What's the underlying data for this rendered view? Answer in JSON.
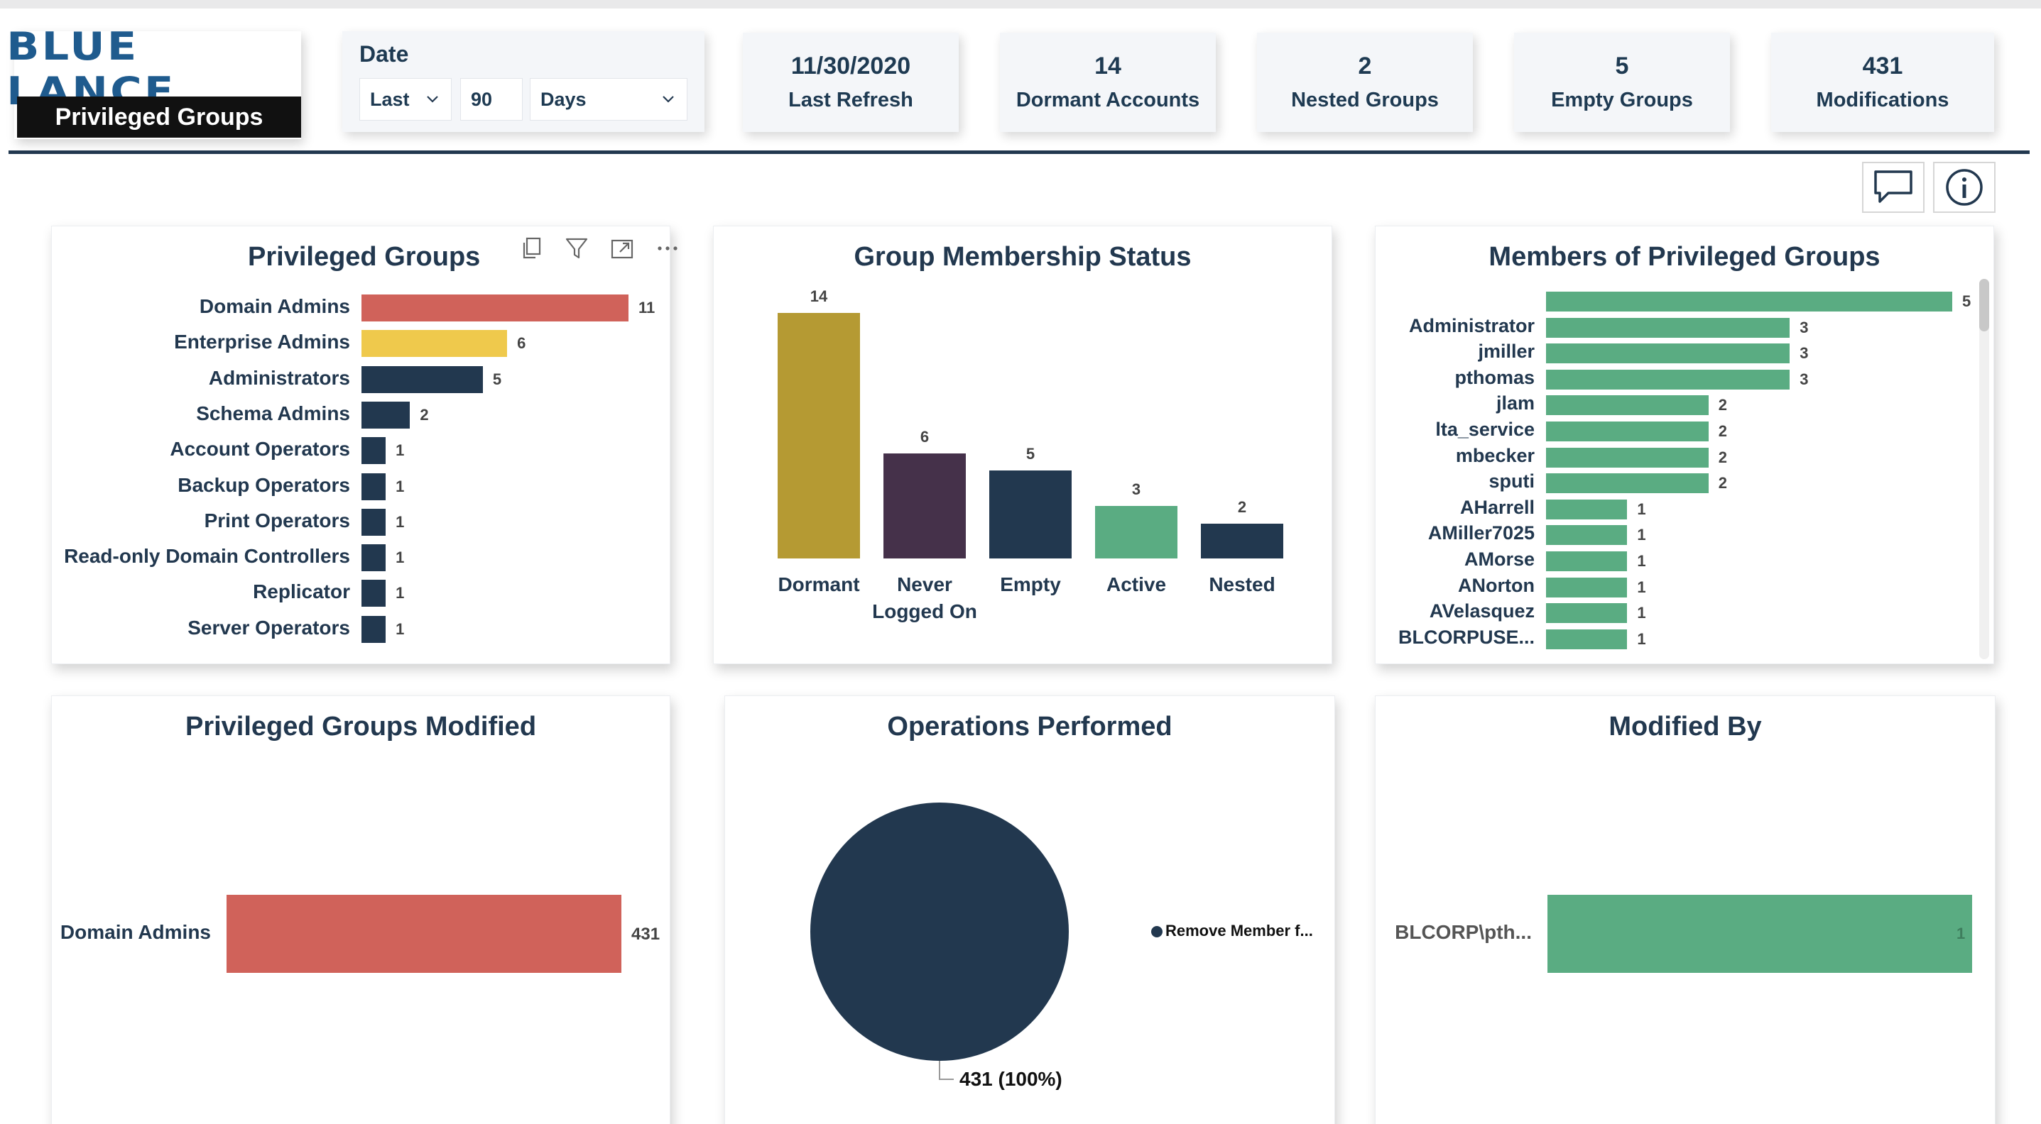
{
  "brand": {
    "logo_text": "BLUE LANCE",
    "page_label": "Privileged Groups"
  },
  "date_filter": {
    "title": "Date",
    "mode": "Last",
    "amount": "90",
    "unit": "Days"
  },
  "kpis": [
    {
      "value": "11/30/2020",
      "label": "Last Refresh"
    },
    {
      "value": "14",
      "label": "Dormant Accounts"
    },
    {
      "value": "2",
      "label": "Nested Groups"
    },
    {
      "value": "5",
      "label": "Empty Groups"
    },
    {
      "value": "431",
      "label": "Modifications"
    }
  ],
  "toolbar": {
    "comment_icon": "comment-icon",
    "info_icon": "info-icon"
  },
  "visual_header_icons": [
    "copy-icon",
    "filter-icon",
    "focus-mode-icon",
    "more-options-icon"
  ],
  "colors": {
    "navy": "#22384f",
    "red": "#d0625a",
    "yellow": "#efc94c",
    "gold": "#b59a33",
    "plum": "#45314a",
    "green": "#5aac82"
  },
  "chart_data": [
    {
      "id": "privileged_groups",
      "type": "bar",
      "orientation": "horizontal",
      "title": "Privileged Groups",
      "categories": [
        "Domain Admins",
        "Enterprise Admins",
        "Administrators",
        "Schema Admins",
        "Account Operators",
        "Backup Operators",
        "Print Operators",
        "Read-only Domain Controllers",
        "Replicator",
        "Server Operators"
      ],
      "values": [
        11,
        6,
        5,
        2,
        1,
        1,
        1,
        1,
        1,
        1
      ],
      "bar_colors": [
        "#d0625a",
        "#efc94c",
        "#22384f",
        "#22384f",
        "#22384f",
        "#22384f",
        "#22384f",
        "#22384f",
        "#22384f",
        "#22384f"
      ],
      "xlim": [
        0,
        11
      ]
    },
    {
      "id": "group_membership_status",
      "type": "bar",
      "orientation": "vertical",
      "title": "Group Membership Status",
      "categories": [
        "Dormant",
        "Never Logged On",
        "Empty",
        "Active",
        "Nested"
      ],
      "values": [
        14,
        6,
        5,
        3,
        2
      ],
      "bar_colors": [
        "#b59a33",
        "#45314a",
        "#22384f",
        "#5aac82",
        "#22384f"
      ],
      "ylim": [
        0,
        14
      ]
    },
    {
      "id": "members_of_privileged_groups",
      "type": "bar",
      "orientation": "horizontal",
      "title": "Members of Privileged Groups",
      "categories": [
        "",
        "Administrator",
        "jmiller",
        "pthomas",
        "jlam",
        "lta_service",
        "mbecker",
        "sputi",
        "AHarrell",
        "AMiller7025",
        "AMorse",
        "ANorton",
        "AVelasquez",
        "BLCORPUSE..."
      ],
      "values": [
        5,
        3,
        3,
        3,
        2,
        2,
        2,
        2,
        1,
        1,
        1,
        1,
        1,
        1
      ],
      "bar_color": "#5aac82",
      "xlim": [
        0,
        5
      ]
    },
    {
      "id": "privileged_groups_modified",
      "type": "bar",
      "orientation": "horizontal",
      "title": "Privileged Groups Modified",
      "categories": [
        "Domain Admins"
      ],
      "values": [
        431
      ],
      "bar_color": "#d0625a",
      "xlim": [
        0,
        431
      ]
    },
    {
      "id": "operations_performed",
      "type": "pie",
      "title": "Operations Performed",
      "slices": [
        {
          "label": "Remove Member f...",
          "value": 431,
          "percent": 100,
          "color": "#22384f"
        }
      ],
      "data_label": "431 (100%)",
      "legend_position": "right"
    },
    {
      "id": "modified_by",
      "type": "bar",
      "orientation": "horizontal",
      "title": "Modified By",
      "categories": [
        "BLCORP\\pth..."
      ],
      "values": [
        1
      ],
      "bar_color": "#5aac82",
      "xlim": [
        0,
        1
      ]
    }
  ]
}
